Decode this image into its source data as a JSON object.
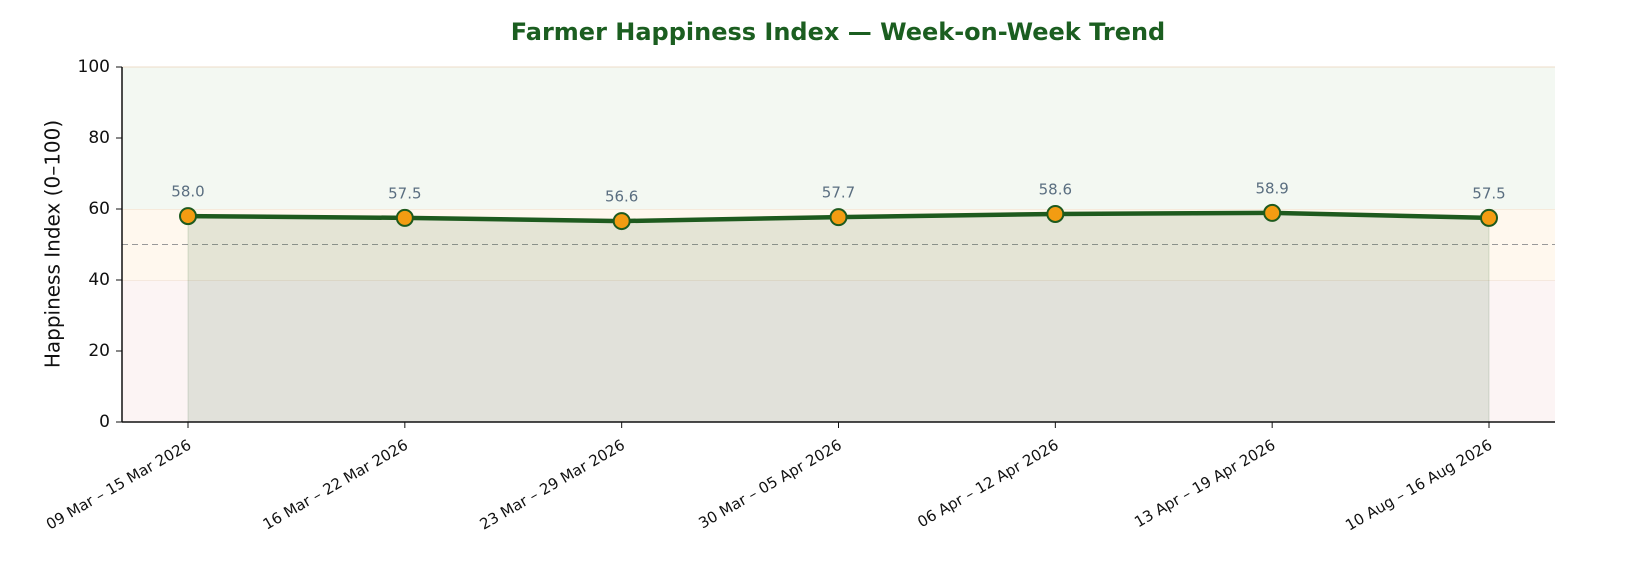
{
  "chart_data": {
    "type": "line",
    "title": "Farmer Happiness Index — Week-on-Week Trend",
    "y_label": "Happiness Index (0–100)",
    "categories": [
      "09 Mar – 15 Mar 2026",
      "16 Mar – 22 Mar 2026",
      "23 Mar – 29 Mar 2026",
      "30 Mar – 05 Apr 2026",
      "06 Apr – 12 Apr 2026",
      "13 Apr – 19 Apr 2026",
      "10 Aug – 16 Aug 2026"
    ],
    "values": [
      58.0,
      57.5,
      56.6,
      57.7,
      58.6,
      58.9,
      57.5
    ],
    "value_labels": [
      "58.0",
      "57.5",
      "56.6",
      "57.7",
      "58.6",
      "58.9",
      "57.5"
    ],
    "color": "#1e5a1e",
    "marker_color": "#f39c12",
    "ylim": [
      0,
      100
    ],
    "yticks": [
      0,
      20,
      40,
      60,
      80,
      100
    ],
    "bands": [
      {
        "from": 0,
        "to": 40,
        "color": "#fcf4f4"
      },
      {
        "from": 40,
        "to": 60,
        "color": "#fff8ee"
      },
      {
        "from": 60,
        "to": 100,
        "color": "#f3f8f2"
      }
    ],
    "reference_line": 50
  }
}
